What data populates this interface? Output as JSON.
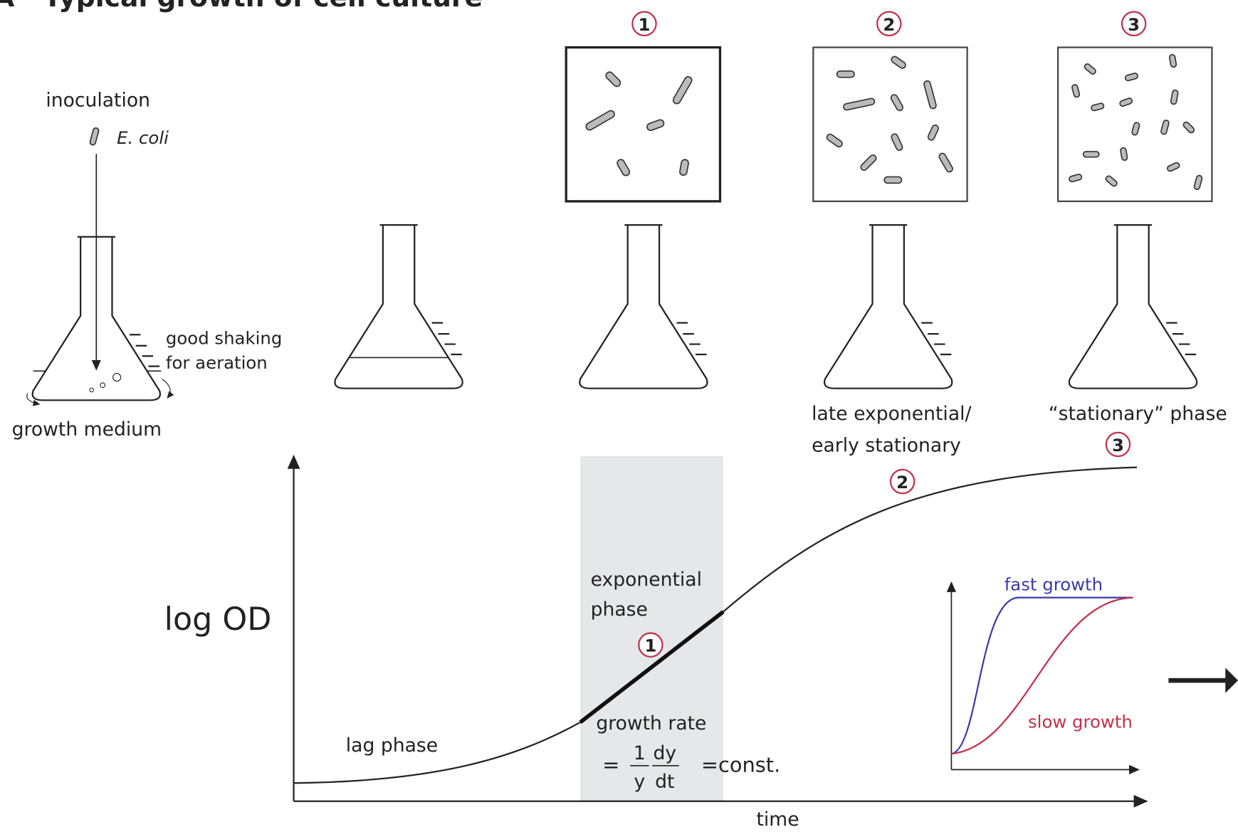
{
  "panel_label": "A",
  "title": "Typical growth of cell culture",
  "inoculation": {
    "label": "inoculation",
    "organism": "E. coli",
    "shaking": [
      "good shaking",
      "for aeration"
    ],
    "medium": "growth medium"
  },
  "snapshots": [
    "1",
    "2",
    "3"
  ],
  "phase_labels": {
    "late": [
      "late exponential/",
      "early stationary"
    ],
    "stationary": "“stationary” phase"
  },
  "curve": {
    "y_label": "log OD",
    "x_label": "time",
    "lag": "lag phase",
    "exponential": [
      "exponential",
      "phase"
    ],
    "markers": [
      "1",
      "2",
      "3"
    ],
    "growth_rate": {
      "label": "growth rate",
      "eq": "=",
      "num": "1",
      "den": "y",
      "dnum": "dy",
      "dden": "dt",
      "rhs": "=const."
    }
  },
  "inset": {
    "fast": "fast growth",
    "slow": "slow growth"
  }
}
